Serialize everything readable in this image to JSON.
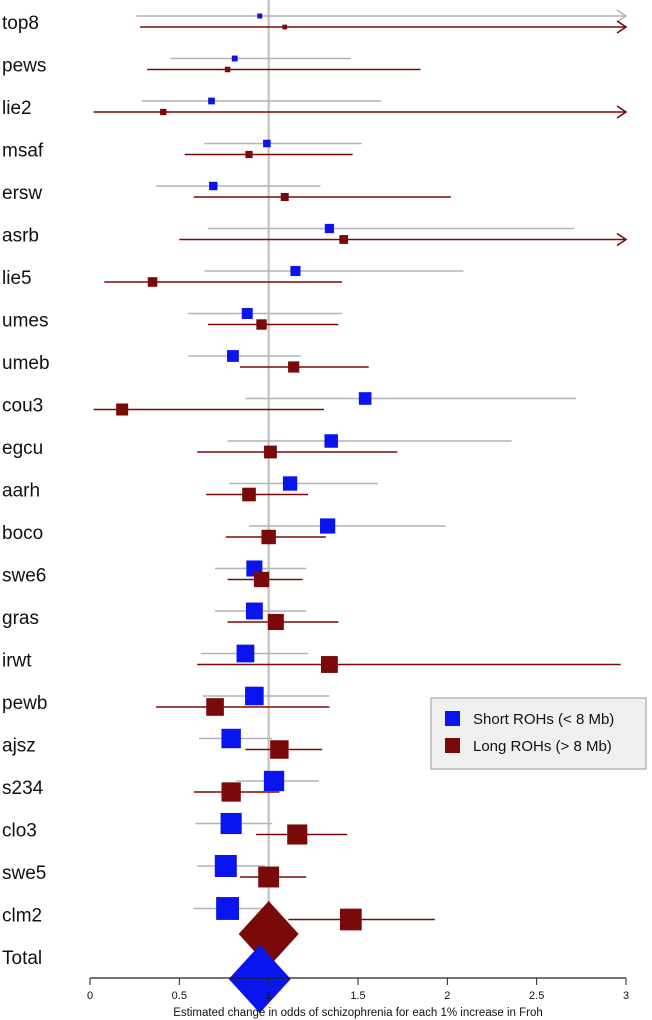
{
  "chart_data": {
    "type": "forest",
    "xlabel": "Estimated change in odds of schizophrenia for each 1% increase in Froh",
    "xlim": [
      0,
      3
    ],
    "xticks": [
      "0",
      "0.5",
      "1",
      "1.5",
      "2",
      "2.5",
      "3"
    ],
    "reference_line": 1,
    "legend": {
      "position": "right",
      "entries": [
        {
          "key": "short",
          "label": "Short ROHs (< 8 Mb)",
          "color": "#0a14ee"
        },
        {
          "key": "long",
          "label": "Long ROHs (> 8 Mb)",
          "color": "#7a0a0a"
        }
      ]
    },
    "series_colors": {
      "short_marker": "#0a14ee",
      "short_ci": "#b4b4b4",
      "long_marker": "#7a0a0a",
      "long_ci": "#7a0a0a"
    },
    "studies": [
      {
        "name": "top8",
        "short": {
          "est": 0.95,
          "lo": 0.26,
          "hi": 3.0,
          "arrow": true
        },
        "long": {
          "est": 1.09,
          "lo": 0.28,
          "hi": 3.0,
          "arrow": true
        }
      },
      {
        "name": "pews",
        "short": {
          "est": 0.81,
          "lo": 0.45,
          "hi": 1.46
        },
        "long": {
          "est": 0.77,
          "lo": 0.32,
          "hi": 1.85
        }
      },
      {
        "name": "lie2",
        "short": {
          "est": 0.68,
          "lo": 0.29,
          "hi": 1.63
        },
        "long": {
          "est": 0.41,
          "lo": 0.02,
          "hi": 3.0,
          "arrow": true
        }
      },
      {
        "name": "msaf",
        "short": {
          "est": 0.99,
          "lo": 0.64,
          "hi": 1.52
        },
        "long": {
          "est": 0.89,
          "lo": 0.53,
          "hi": 1.47
        }
      },
      {
        "name": "ersw",
        "short": {
          "est": 0.69,
          "lo": 0.37,
          "hi": 1.29
        },
        "long": {
          "est": 1.09,
          "lo": 0.58,
          "hi": 2.02
        }
      },
      {
        "name": "asrb",
        "short": {
          "est": 1.34,
          "lo": 0.66,
          "hi": 2.71
        },
        "long": {
          "est": 1.42,
          "lo": 0.5,
          "hi": 3.0,
          "arrow": true
        }
      },
      {
        "name": "lie5",
        "short": {
          "est": 1.15,
          "lo": 0.64,
          "hi": 2.09
        },
        "long": {
          "est": 0.35,
          "lo": 0.08,
          "hi": 1.41
        }
      },
      {
        "name": "umes",
        "short": {
          "est": 0.88,
          "lo": 0.55,
          "hi": 1.41
        },
        "long": {
          "est": 0.96,
          "lo": 0.66,
          "hi": 1.39
        }
      },
      {
        "name": "umeb",
        "short": {
          "est": 0.8,
          "lo": 0.55,
          "hi": 1.18
        },
        "long": {
          "est": 1.14,
          "lo": 0.84,
          "hi": 1.56
        }
      },
      {
        "name": "cou3",
        "short": {
          "est": 1.54,
          "lo": 0.87,
          "hi": 2.72
        },
        "long": {
          "est": 0.18,
          "lo": 0.02,
          "hi": 1.31
        }
      },
      {
        "name": "egcu",
        "short": {
          "est": 1.35,
          "lo": 0.77,
          "hi": 2.36
        },
        "long": {
          "est": 1.01,
          "lo": 0.6,
          "hi": 1.72
        }
      },
      {
        "name": "aarh",
        "short": {
          "est": 1.12,
          "lo": 0.78,
          "hi": 1.61
        },
        "long": {
          "est": 0.89,
          "lo": 0.65,
          "hi": 1.22
        }
      },
      {
        "name": "boco",
        "short": {
          "est": 1.33,
          "lo": 0.89,
          "hi": 1.99
        },
        "long": {
          "est": 1.0,
          "lo": 0.76,
          "hi": 1.32
        }
      },
      {
        "name": "swe6",
        "short": {
          "est": 0.92,
          "lo": 0.7,
          "hi": 1.21
        },
        "long": {
          "est": 0.96,
          "lo": 0.77,
          "hi": 1.19
        }
      },
      {
        "name": "gras",
        "short": {
          "est": 0.92,
          "lo": 0.7,
          "hi": 1.21
        },
        "long": {
          "est": 1.04,
          "lo": 0.77,
          "hi": 1.39
        }
      },
      {
        "name": "irwt",
        "short": {
          "est": 0.87,
          "lo": 0.62,
          "hi": 1.22
        },
        "long": {
          "est": 1.34,
          "lo": 0.6,
          "hi": 2.97
        }
      },
      {
        "name": "pewb",
        "short": {
          "est": 0.92,
          "lo": 0.63,
          "hi": 1.34
        },
        "long": {
          "est": 0.7,
          "lo": 0.37,
          "hi": 1.34
        }
      },
      {
        "name": "ajsz",
        "short": {
          "est": 0.79,
          "lo": 0.61,
          "hi": 1.02
        },
        "long": {
          "est": 1.06,
          "lo": 0.87,
          "hi": 1.3
        }
      },
      {
        "name": "s234",
        "short": {
          "est": 1.03,
          "lo": 0.82,
          "hi": 1.28
        },
        "long": {
          "est": 0.79,
          "lo": 0.58,
          "hi": 1.06
        }
      },
      {
        "name": "clo3",
        "short": {
          "est": 0.79,
          "lo": 0.59,
          "hi": 1.02
        },
        "long": {
          "est": 1.16,
          "lo": 0.93,
          "hi": 1.44
        }
      },
      {
        "name": "swe5",
        "short": {
          "est": 0.76,
          "lo": 0.6,
          "hi": 0.98
        },
        "long": {
          "est": 1.0,
          "lo": 0.84,
          "hi": 1.21
        }
      },
      {
        "name": "clm2",
        "short": {
          "est": 0.77,
          "lo": 0.58,
          "hi": 1.02
        },
        "long": {
          "est": 1.46,
          "lo": 1.11,
          "hi": 1.93
        }
      }
    ],
    "total": {
      "name": "Total",
      "short": {
        "est": 0.95
      },
      "long": {
        "est": 1.0
      }
    }
  }
}
